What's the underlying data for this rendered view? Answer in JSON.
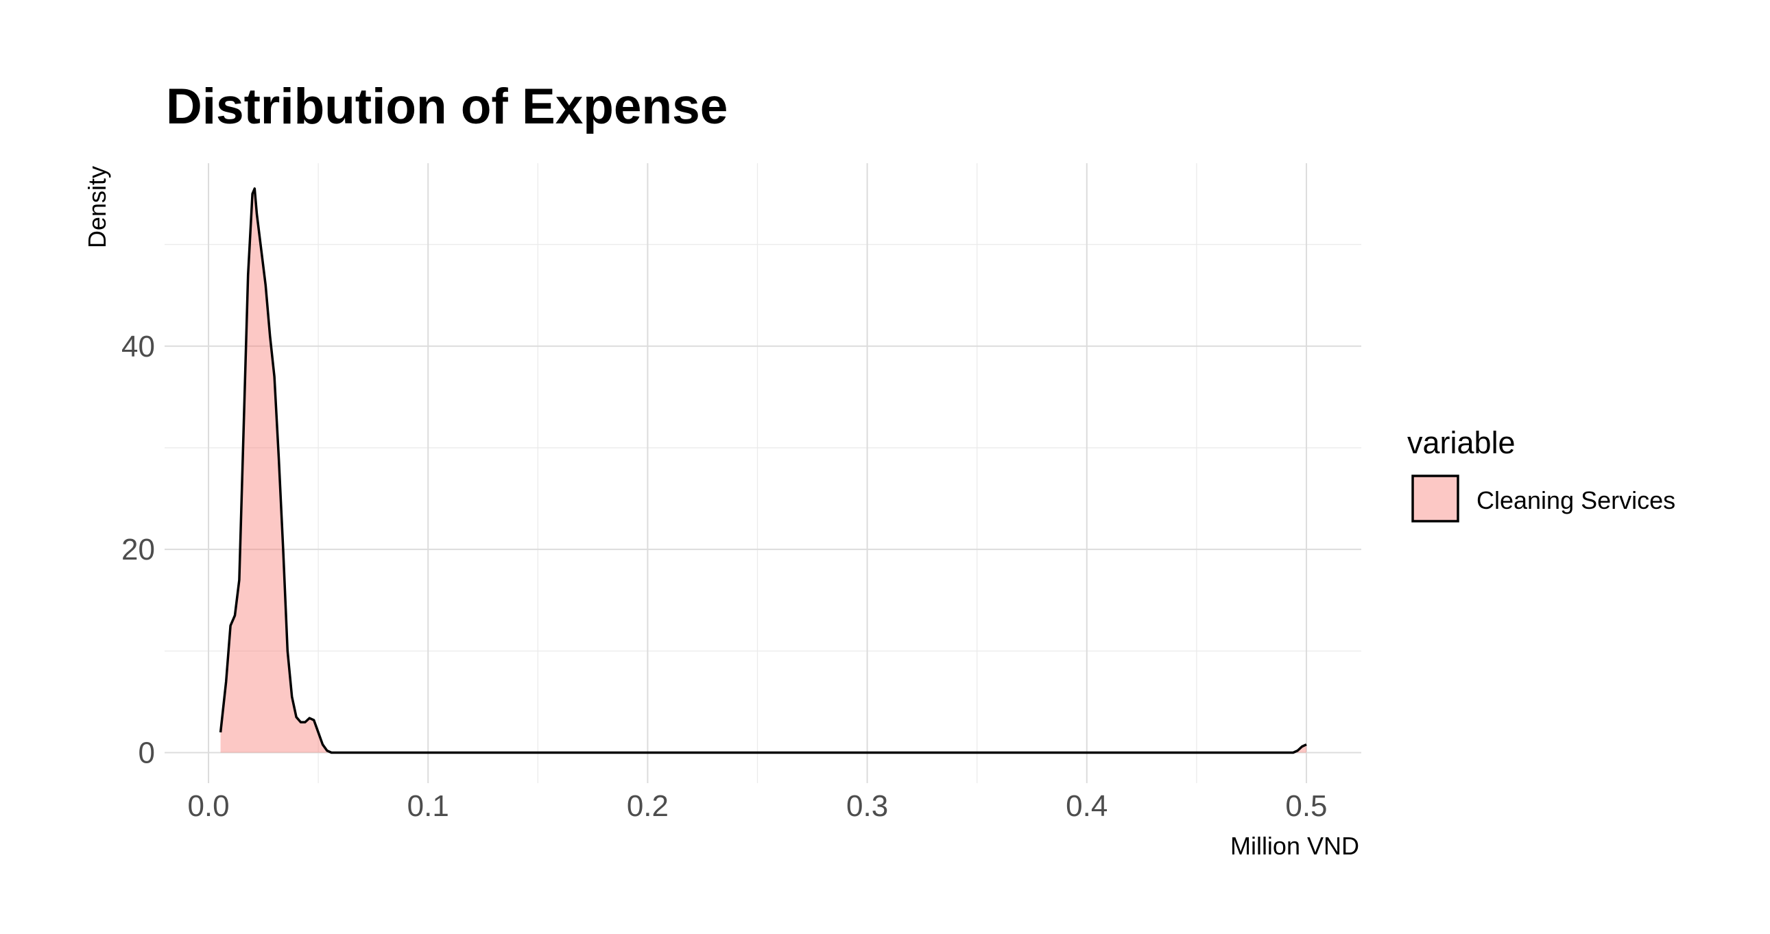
{
  "chart_data": {
    "type": "area",
    "title": "Distribution of Expense",
    "xlabel": "Million VND",
    "ylabel": "Density",
    "xlim": [
      -0.02,
      0.525
    ],
    "ylim": [
      -3,
      58
    ],
    "x_ticks": [
      0.0,
      0.1,
      0.2,
      0.3,
      0.4,
      0.5
    ],
    "x_tick_labels": [
      "0.0",
      "0.1",
      "0.2",
      "0.3",
      "0.4",
      "0.5"
    ],
    "y_ticks": [
      0,
      20,
      40
    ],
    "y_tick_labels": [
      "0",
      "20",
      "40"
    ],
    "grid": true,
    "legend": {
      "title": "variable",
      "position": "right",
      "entries": [
        {
          "label": "Cleaning Services",
          "fill": "#f8766d"
        }
      ]
    },
    "series": [
      {
        "name": "Cleaning Services",
        "fill": "#f8766d",
        "fill_opacity": 0.4,
        "line": "#000000",
        "x": [
          0.0055,
          0.008,
          0.01,
          0.012,
          0.014,
          0.016,
          0.018,
          0.02,
          0.021,
          0.022,
          0.024,
          0.026,
          0.028,
          0.03,
          0.032,
          0.034,
          0.036,
          0.038,
          0.04,
          0.042,
          0.044,
          0.046,
          0.048,
          0.05,
          0.052,
          0.054,
          0.056,
          0.058,
          0.06,
          0.1,
          0.2,
          0.3,
          0.4,
          0.494,
          0.496,
          0.498,
          0.5
        ],
        "y": [
          2.0,
          7.0,
          12.5,
          13.5,
          17.0,
          32.0,
          47.0,
          55.0,
          55.5,
          53.0,
          49.5,
          46.0,
          41.0,
          37.0,
          29.0,
          20.0,
          10.0,
          5.5,
          3.5,
          3.0,
          3.0,
          3.4,
          3.2,
          2.0,
          0.8,
          0.2,
          0.0,
          0.0,
          0.0,
          0.0,
          0.0,
          0.0,
          0.0,
          0.0,
          0.2,
          0.6,
          0.8
        ]
      }
    ]
  }
}
